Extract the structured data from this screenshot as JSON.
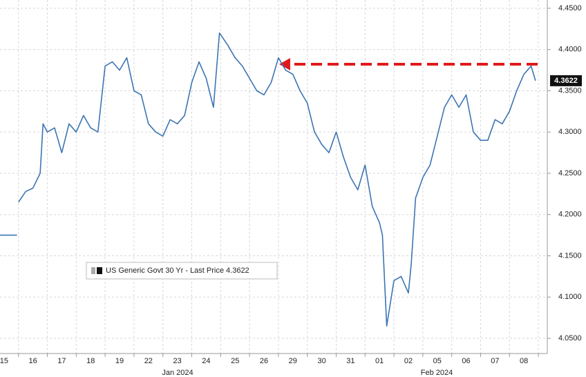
{
  "chart_data": {
    "type": "line",
    "categories": [
      "15",
      "16",
      "17",
      "18",
      "19",
      "22",
      "23",
      "24",
      "25",
      "26",
      "29",
      "30",
      "31",
      "01",
      "02",
      "05",
      "06",
      "07",
      "08"
    ],
    "x_group_labels": [
      "Jan 2024",
      "Feb 2024"
    ],
    "xlim": [
      -0.14,
      18.81
    ],
    "ylim": [
      4.0316,
      4.46
    ],
    "yticks": [
      {
        "value": 4.05,
        "label": "4.0500"
      },
      {
        "value": 4.1,
        "label": "4.1000"
      },
      {
        "value": 4.15,
        "label": "4.1500"
      },
      {
        "value": 4.2,
        "label": "4.2000"
      },
      {
        "value": 4.25,
        "label": "4.2500"
      },
      {
        "value": 4.3,
        "label": "4.3000"
      },
      {
        "value": 4.35,
        "label": "4.3500"
      },
      {
        "value": 4.4,
        "label": "4.4000"
      },
      {
        "value": 4.45,
        "label": "4.4500"
      }
    ],
    "grid": true,
    "last_price": 4.3622,
    "series": [
      {
        "name": "US Generic Govt 30 Yr - Last Price 4.3622",
        "color": "#3b74b3",
        "x": [
          -0.14,
          0.45,
          0.47,
          0.5,
          0.75,
          1.0,
          1.25,
          1.35,
          1.5,
          1.75,
          2.0,
          2.25,
          2.5,
          2.75,
          3.0,
          3.25,
          3.5,
          3.75,
          4.0,
          4.25,
          4.5,
          4.75,
          5.0,
          5.25,
          5.5,
          5.75,
          6.0,
          6.25,
          6.5,
          6.75,
          7.0,
          7.25,
          7.46,
          7.75,
          8.0,
          8.25,
          8.5,
          8.75,
          9.0,
          9.25,
          9.5,
          9.75,
          10.0,
          10.25,
          10.5,
          10.75,
          11.0,
          11.25,
          11.5,
          11.75,
          12.0,
          12.25,
          12.5,
          12.75,
          13.0,
          13.1,
          13.25,
          13.5,
          13.75,
          14.0,
          14.1,
          14.25,
          14.5,
          14.75,
          15.0,
          15.25,
          15.5,
          15.75,
          16.0,
          16.25,
          16.5,
          16.75,
          17.0,
          17.25,
          17.5,
          17.75,
          18.0,
          18.25,
          18.4
        ],
        "values": [
          4.175,
          4.175,
          null,
          4.215,
          4.228,
          4.232,
          4.25,
          4.31,
          4.3,
          4.305,
          4.275,
          4.31,
          4.3,
          4.32,
          4.305,
          4.3,
          4.38,
          4.385,
          4.375,
          4.39,
          4.35,
          4.345,
          4.31,
          4.3,
          4.295,
          4.315,
          4.31,
          4.32,
          4.36,
          4.385,
          4.365,
          4.33,
          4.42,
          4.405,
          4.39,
          4.38,
          4.365,
          4.35,
          4.345,
          4.36,
          4.39,
          4.375,
          4.37,
          4.35,
          4.335,
          4.3,
          4.285,
          4.275,
          4.3,
          4.27,
          4.245,
          4.23,
          4.26,
          4.21,
          4.19,
          4.175,
          4.065,
          4.12,
          4.125,
          4.105,
          4.14,
          4.22,
          4.245,
          4.26,
          4.295,
          4.33,
          4.345,
          4.33,
          4.345,
          4.3,
          4.29,
          4.29,
          4.315,
          4.31,
          4.325,
          4.35,
          4.37,
          4.38,
          4.3622
        ]
      }
    ]
  }
}
